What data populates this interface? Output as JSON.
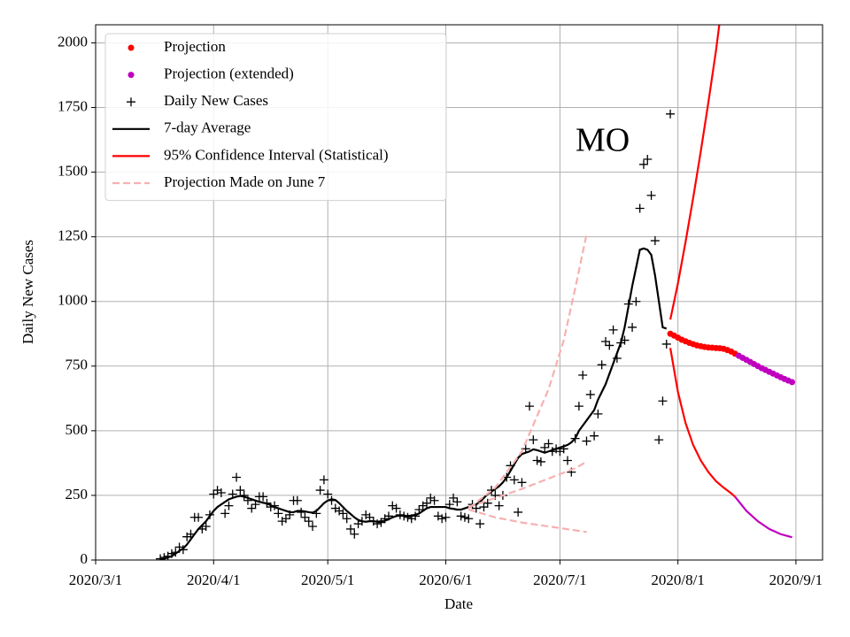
{
  "chart_data": {
    "type": "line",
    "annotation": "MO",
    "xlabel": "Date",
    "ylabel": "Daily New Cases",
    "xlim": [
      "2020/3/1",
      "2020/9/8"
    ],
    "xticks": [
      "2020/3/1",
      "2020/4/1",
      "2020/5/1",
      "2020/6/1",
      "2020/7/1",
      "2020/8/1",
      "2020/9/1"
    ],
    "ylim": [
      0,
      2070
    ],
    "yticks": [
      0,
      250,
      500,
      750,
      1000,
      1250,
      1500,
      1750,
      2000
    ],
    "grid": true,
    "legend": "upper left",
    "x": [
      "2020/3/18",
      "2020/3/19",
      "2020/3/20",
      "2020/3/21",
      "2020/3/22",
      "2020/3/23",
      "2020/3/24",
      "2020/3/25",
      "2020/3/26",
      "2020/3/27",
      "2020/3/28",
      "2020/3/29",
      "2020/3/30",
      "2020/3/31",
      "2020/4/1",
      "2020/4/2",
      "2020/4/3",
      "2020/4/4",
      "2020/4/5",
      "2020/4/6",
      "2020/4/7",
      "2020/4/8",
      "2020/4/9",
      "2020/4/10",
      "2020/4/11",
      "2020/4/12",
      "2020/4/13",
      "2020/4/14",
      "2020/4/15",
      "2020/4/16",
      "2020/4/17",
      "2020/4/18",
      "2020/4/19",
      "2020/4/20",
      "2020/4/21",
      "2020/4/22",
      "2020/4/23",
      "2020/4/24",
      "2020/4/25",
      "2020/4/26",
      "2020/4/27",
      "2020/4/28",
      "2020/4/29",
      "2020/4/30",
      "2020/5/1",
      "2020/5/2",
      "2020/5/3",
      "2020/5/4",
      "2020/5/5",
      "2020/5/6",
      "2020/5/7",
      "2020/5/8",
      "2020/5/9",
      "2020/5/10",
      "2020/5/11",
      "2020/5/12",
      "2020/5/13",
      "2020/5/14",
      "2020/5/15",
      "2020/5/16",
      "2020/5/17",
      "2020/5/18",
      "2020/5/19",
      "2020/5/20",
      "2020/5/21",
      "2020/5/22",
      "2020/5/23",
      "2020/5/24",
      "2020/5/25",
      "2020/5/26",
      "2020/5/27",
      "2020/5/28",
      "2020/5/29",
      "2020/5/30",
      "2020/5/31",
      "2020/6/1",
      "2020/6/2",
      "2020/6/3",
      "2020/6/4",
      "2020/6/5",
      "2020/6/6",
      "2020/6/7",
      "2020/6/8",
      "2020/6/9",
      "2020/6/10",
      "2020/6/11",
      "2020/6/12",
      "2020/6/13",
      "2020/6/14",
      "2020/6/15",
      "2020/6/16",
      "2020/6/17",
      "2020/6/18",
      "2020/6/19",
      "2020/6/20",
      "2020/6/21",
      "2020/6/22",
      "2020/6/23",
      "2020/6/24",
      "2020/6/25",
      "2020/6/26",
      "2020/6/27",
      "2020/6/28",
      "2020/6/29",
      "2020/6/30",
      "2020/7/1",
      "2020/7/2",
      "2020/7/3",
      "2020/7/4",
      "2020/7/5",
      "2020/7/6",
      "2020/7/7",
      "2020/7/8",
      "2020/7/9",
      "2020/7/10",
      "2020/7/11",
      "2020/7/12",
      "2020/7/13",
      "2020/7/14",
      "2020/7/15",
      "2020/7/16",
      "2020/7/17",
      "2020/7/18",
      "2020/7/19",
      "2020/7/20",
      "2020/7/21",
      "2020/7/22",
      "2020/7/23",
      "2020/7/24",
      "2020/7/25",
      "2020/7/26",
      "2020/7/27",
      "2020/7/28",
      "2020/7/29",
      "2020/7/30"
    ],
    "series": [
      {
        "name": "Projection",
        "style": "dot",
        "color": "#ff0000",
        "x": [
          "2020/7/30",
          "2020/7/31",
          "2020/8/1",
          "2020/8/2",
          "2020/8/3",
          "2020/8/4",
          "2020/8/5",
          "2020/8/6",
          "2020/8/7",
          "2020/8/8",
          "2020/8/9",
          "2020/8/10",
          "2020/8/11",
          "2020/8/12",
          "2020/8/13",
          "2020/8/14",
          "2020/8/15",
          "2020/8/16"
        ],
        "values": [
          875,
          868,
          860,
          852,
          846,
          840,
          835,
          830,
          827,
          824,
          822,
          821,
          820,
          819,
          817,
          812,
          806,
          798
        ]
      },
      {
        "name": "Projection (extended)",
        "style": "dot",
        "color": "#bf00bf",
        "x": [
          "2020/8/17",
          "2020/8/18",
          "2020/8/19",
          "2020/8/20",
          "2020/8/21",
          "2020/8/22",
          "2020/8/23",
          "2020/8/24",
          "2020/8/25",
          "2020/8/26",
          "2020/8/27",
          "2020/8/28",
          "2020/8/29",
          "2020/8/30",
          "2020/8/31"
        ],
        "values": [
          790,
          782,
          774,
          766,
          758,
          750,
          742,
          735,
          728,
          721,
          714,
          707,
          700,
          694,
          688
        ]
      },
      {
        "name": "Daily New Cases",
        "style": "plus",
        "color": "#000000",
        "values": [
          5,
          10,
          15,
          25,
          30,
          50,
          40,
          90,
          100,
          165,
          165,
          120,
          130,
          175,
          255,
          270,
          260,
          180,
          210,
          255,
          320,
          270,
          250,
          230,
          200,
          215,
          245,
          245,
          220,
          205,
          210,
          180,
          150,
          160,
          175,
          230,
          230,
          185,
          165,
          150,
          130,
          180,
          270,
          310,
          255,
          230,
          200,
          190,
          180,
          160,
          120,
          100,
          140,
          150,
          175,
          165,
          150,
          140,
          145,
          160,
          170,
          210,
          200,
          175,
          170,
          165,
          160,
          170,
          195,
          210,
          220,
          240,
          230,
          170,
          160,
          165,
          215,
          240,
          225,
          170,
          165,
          160,
          215,
          200,
          140,
          205,
          220,
          270,
          250,
          210,
          250,
          320,
          365,
          310,
          185,
          300,
          430,
          595,
          465,
          385,
          380,
          435,
          450,
          420,
          430,
          420,
          430,
          385,
          340,
          470,
          595,
          715,
          460,
          640,
          480,
          565,
          755,
          845,
          830,
          890,
          780,
          840,
          850,
          990,
          900,
          1000,
          1360,
          1530,
          1550,
          1410,
          1235,
          465,
          615,
          835,
          1725
        ]
      },
      {
        "name": "7-day Average",
        "style": "line",
        "color": "#000000",
        "values": [
          2,
          5,
          10,
          15,
          25,
          35,
          45,
          60,
          80,
          100,
          120,
          135,
          150,
          170,
          190,
          205,
          215,
          225,
          235,
          240,
          245,
          248,
          245,
          240,
          235,
          230,
          225,
          222,
          218,
          212,
          205,
          200,
          195,
          190,
          185,
          185,
          190,
          190,
          188,
          185,
          183,
          190,
          205,
          220,
          230,
          235,
          232,
          220,
          205,
          190,
          178,
          165,
          155,
          150,
          148,
          150,
          150,
          148,
          150,
          152,
          158,
          165,
          170,
          172,
          172,
          170,
          172,
          175,
          180,
          190,
          200,
          205,
          205,
          205,
          205,
          205,
          200,
          198,
          195,
          195,
          200,
          205,
          210,
          215,
          225,
          240,
          255,
          265,
          275,
          285,
          300,
          320,
          345,
          370,
          395,
          410,
          415,
          420,
          428,
          425,
          420,
          415,
          420,
          425,
          430,
          435,
          440,
          445,
          455,
          470,
          500,
          520,
          540,
          560,
          580,
          620,
          650,
          680,
          720,
          760,
          800,
          840,
          900,
          980,
          1060,
          1130,
          1200,
          1205,
          1200,
          1180,
          1100,
          1000,
          900,
          895,
          null
        ]
      },
      {
        "name": "95% Confidence Interval (Statistical)",
        "style": "line",
        "color": "#ff0000",
        "x": [
          "2020/7/30",
          "2020/8/1",
          "2020/8/3",
          "2020/8/5",
          "2020/8/7",
          "2020/8/9",
          "2020/8/11",
          "2020/8/13"
        ],
        "values": [
          930,
          1070,
          1230,
          1400,
          1580,
          1770,
          1970,
          2200
        ]
      },
      {
        "style": "line",
        "color": "#ff0000",
        "x": [
          "2020/7/30",
          "2020/8/1",
          "2020/8/3",
          "2020/8/5",
          "2020/8/7",
          "2020/8/9",
          "2020/8/11",
          "2020/8/13",
          "2020/8/15",
          "2020/8/16"
        ],
        "values": [
          820,
          650,
          530,
          445,
          385,
          340,
          305,
          280,
          258,
          245
        ]
      },
      {
        "style": "line",
        "color": "#bf00bf",
        "x": [
          "2020/8/16",
          "2020/8/19",
          "2020/8/22",
          "2020/8/25",
          "2020/8/28",
          "2020/8/31"
        ],
        "values": [
          245,
          190,
          150,
          120,
          100,
          88
        ]
      },
      {
        "name": "Projection Made on June 7",
        "style": "dashed",
        "color": "#f7b0b0",
        "x": [
          "2020/6/7",
          "2020/6/14",
          "2020/6/21",
          "2020/6/28",
          "2020/7/2",
          "2020/7/5",
          "2020/7/8"
        ],
        "values": [
          200,
          280,
          420,
          660,
          850,
          1050,
          1260
        ]
      },
      {
        "style": "dashed",
        "color": "#f7b0b0",
        "x": [
          "2020/6/7",
          "2020/6/14",
          "2020/6/21",
          "2020/6/28",
          "2020/7/5",
          "2020/7/8"
        ],
        "values": [
          205,
          240,
          275,
          315,
          355,
          380
        ]
      },
      {
        "style": "dashed",
        "color": "#f7b0b0",
        "x": [
          "2020/6/7",
          "2020/6/14",
          "2020/6/21",
          "2020/6/28",
          "2020/7/5",
          "2020/7/8"
        ],
        "values": [
          195,
          165,
          145,
          130,
          115,
          108
        ]
      }
    ]
  }
}
